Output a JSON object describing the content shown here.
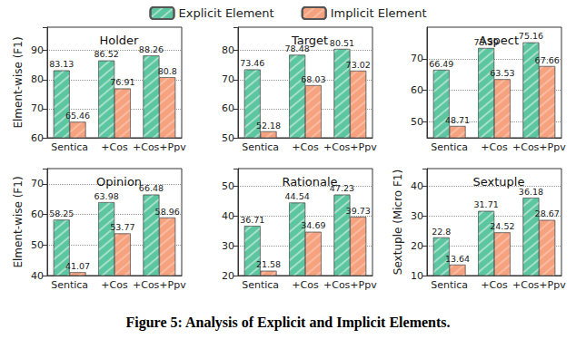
{
  "caption": "Figure 5: Analysis of Explicit and Implicit Elements.",
  "chart_data": [
    {
      "type": "bar",
      "title": "Holder",
      "ylabel": "Elment-wise (F1)",
      "categories": [
        "Sentica",
        "+Cos",
        "+Cos+Ppv"
      ],
      "series": [
        {
          "name": "Explicit Element",
          "color": "#5cc6a0",
          "values": [
            83.13,
            86.52,
            88.26
          ]
        },
        {
          "name": "Implicit Element",
          "color": "#f7a27e",
          "values": [
            65.46,
            76.91,
            80.8
          ]
        }
      ],
      "ylim": [
        60,
        98
      ],
      "yticks": [
        60,
        70,
        80,
        90
      ],
      "grid": true,
      "data_labels": true,
      "legend": "top"
    },
    {
      "type": "bar",
      "title": "Target",
      "categories": [
        "Sentica",
        "+Cos",
        "+Cos+Ppv"
      ],
      "series": [
        {
          "name": "Explicit Element",
          "color": "#5cc6a0",
          "values": [
            73.46,
            78.48,
            80.51
          ]
        },
        {
          "name": "Implicit Element",
          "color": "#f7a27e",
          "values": [
            52.18,
            68.03,
            73.02
          ]
        }
      ],
      "ylim": [
        50,
        88
      ],
      "yticks": [
        50,
        60,
        70,
        80
      ],
      "grid": true,
      "data_labels": true
    },
    {
      "type": "bar",
      "title": "Aspect",
      "categories": [
        "Sentica",
        "+Cos",
        "+Cos+Ppv"
      ],
      "series": [
        {
          "name": "Explicit Element",
          "color": "#5cc6a0",
          "values": [
            66.49,
            73.39,
            75.16
          ]
        },
        {
          "name": "Implicit Element",
          "color": "#f7a27e",
          "values": [
            48.71,
            63.53,
            67.66
          ]
        }
      ],
      "ylim": [
        45,
        80
      ],
      "yticks": [
        50,
        60,
        70
      ],
      "grid": true,
      "data_labels": true
    },
    {
      "type": "bar",
      "title": "Opinion",
      "ylabel": "Elment-wise (F1)",
      "categories": [
        "Sentica",
        "+Cos",
        "+Cos+Ppv"
      ],
      "series": [
        {
          "name": "Explicit Element",
          "color": "#5cc6a0",
          "values": [
            58.25,
            63.98,
            66.48
          ]
        },
        {
          "name": "Implicit Element",
          "color": "#f7a27e",
          "values": [
            41.07,
            53.77,
            58.96
          ]
        }
      ],
      "ylim": [
        40,
        75
      ],
      "yticks": [
        40,
        50,
        60,
        70
      ],
      "grid": true,
      "data_labels": true
    },
    {
      "type": "bar",
      "title": "Rationale",
      "categories": [
        "Sentica",
        "+Cos",
        "+Cos+Ppv"
      ],
      "series": [
        {
          "name": "Explicit Element",
          "color": "#5cc6a0",
          "values": [
            36.71,
            44.54,
            47.23
          ]
        },
        {
          "name": "Implicit Element",
          "color": "#f7a27e",
          "values": [
            21.58,
            34.69,
            39.73
          ]
        }
      ],
      "ylim": [
        20,
        56
      ],
      "yticks": [
        20,
        30,
        40,
        50
      ],
      "grid": true,
      "data_labels": true
    },
    {
      "type": "bar",
      "title": "Sextuple",
      "ylabel": "Sextuple (Micro F1)",
      "categories": [
        "Sentica",
        "+Cos",
        "+Cos+Ppv"
      ],
      "series": [
        {
          "name": "Explicit Element",
          "color": "#5cc6a0",
          "values": [
            22.8,
            31.71,
            36.18
          ]
        },
        {
          "name": "Implicit Element",
          "color": "#f7a27e",
          "values": [
            13.64,
            24.52,
            28.67
          ]
        }
      ],
      "ylim": [
        10,
        46
      ],
      "yticks": [
        10,
        20,
        30,
        40
      ],
      "grid": true,
      "data_labels": true
    }
  ]
}
